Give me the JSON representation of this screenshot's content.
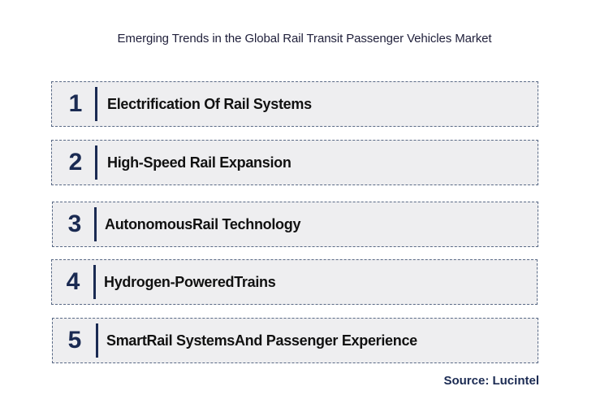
{
  "title": "Emerging Trends in the Global Rail Transit Passenger Vehicles Market",
  "trends": [
    {
      "number": "1",
      "label": "Electrification Of Rail Systems"
    },
    {
      "number": "2",
      "label": "High-Speed Rail Expansion"
    },
    {
      "number": "3",
      "label": "AutonomousRail Technology"
    },
    {
      "number": "4",
      "label": "Hydrogen-PoweredTrains"
    },
    {
      "number": "5",
      "label": "SmartRail SystemsAnd Passenger Experience"
    }
  ],
  "source": "Source: Lucintel",
  "colors": {
    "box_fill": "#eeeef0",
    "box_border": "#5a6a86",
    "number": "#1a2a52",
    "label": "#111111"
  }
}
